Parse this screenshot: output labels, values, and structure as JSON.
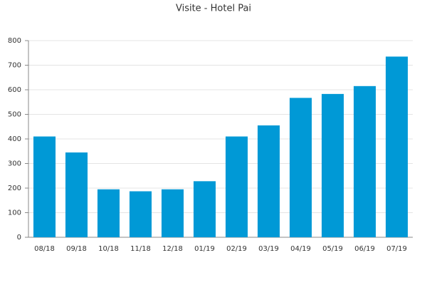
{
  "chart_data": {
    "type": "bar",
    "title": "Visite - Hotel Pai",
    "categories": [
      "08/18",
      "09/18",
      "10/18",
      "11/18",
      "12/18",
      "01/19",
      "02/19",
      "03/19",
      "04/19",
      "05/19",
      "06/19",
      "07/19"
    ],
    "values": [
      410,
      345,
      195,
      187,
      195,
      228,
      410,
      455,
      567,
      583,
      615,
      735
    ],
    "color": "#0099d6",
    "ylim": [
      0,
      800
    ],
    "yticks": [
      0,
      100,
      200,
      300,
      400,
      500,
      600,
      700,
      800
    ],
    "grid": true
  }
}
